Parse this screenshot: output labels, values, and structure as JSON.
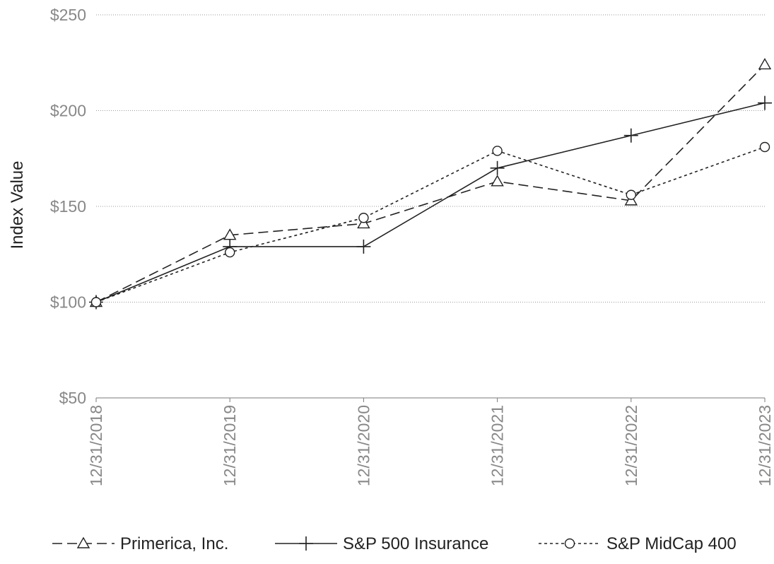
{
  "chart_data": {
    "type": "line",
    "title": "",
    "xlabel": "",
    "ylabel": "Index Value",
    "ylim": [
      50,
      250
    ],
    "y_ticks": [
      50,
      100,
      150,
      200,
      250
    ],
    "y_tick_labels": [
      "$50",
      "$100",
      "$150",
      "$200",
      "$250"
    ],
    "categories": [
      "12/31/2018",
      "12/31/2019",
      "12/31/2020",
      "12/31/2021",
      "12/31/2022",
      "12/31/2023"
    ],
    "grid": "horizontal dotted",
    "legend_position": "bottom",
    "series": [
      {
        "name": "Primerica, Inc.",
        "values": [
          100,
          135,
          141,
          163,
          153,
          224
        ],
        "line_style": "dashed",
        "marker": "triangle",
        "color": "#222222"
      },
      {
        "name": "S&P 500 Insurance",
        "values": [
          100,
          129,
          129,
          170,
          187,
          204
        ],
        "line_style": "solid",
        "marker": "plus",
        "color": "#222222"
      },
      {
        "name": "S&P MidCap 400",
        "values": [
          100,
          126,
          144,
          179,
          156,
          181
        ],
        "line_style": "dotted",
        "marker": "circle",
        "color": "#222222"
      }
    ]
  }
}
